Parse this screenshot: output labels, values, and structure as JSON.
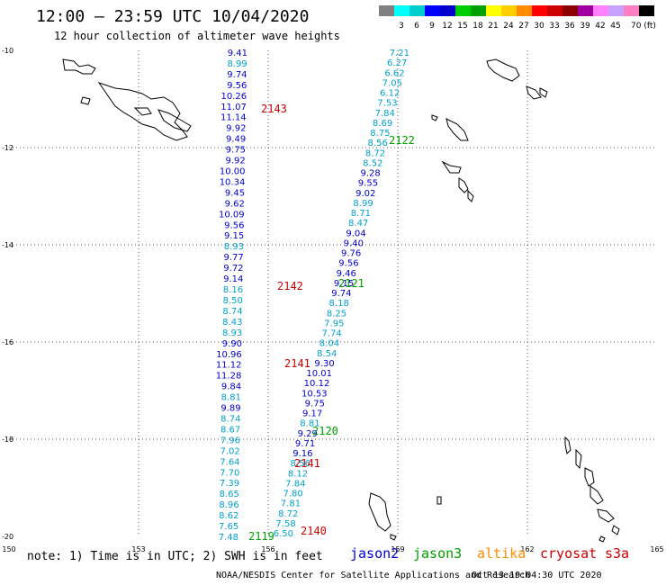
{
  "header": {
    "title": "12:00 – 23:59 UTC 10/04/2020",
    "subtitle": "12 hour collection of altimeter wave heights"
  },
  "colorbar": {
    "swatches": [
      "#808080",
      "#00ffff",
      "#00cdcd",
      "#0000ff",
      "#0000cd",
      "#00cd00",
      "#00a000",
      "#ffff00",
      "#ffcd00",
      "#ff8c00",
      "#ff0000",
      "#cd0000",
      "#8b0000",
      "#a000a0",
      "#ff80ff",
      "#c8a0ff",
      "#ff80c0",
      "#000000"
    ],
    "labels": [
      "3",
      "6",
      "9",
      "12",
      "15",
      "18",
      "21",
      "24",
      "27",
      "30",
      "33",
      "36",
      "39",
      "42",
      "45",
      "70 (ft)"
    ]
  },
  "axes": {
    "x_labels": [
      "150",
      "153",
      "156",
      "159",
      "162",
      "165"
    ],
    "y_labels": [
      "-10",
      "-12",
      "-14",
      "-16",
      "-18",
      "-20"
    ],
    "x_range": [
      150,
      165
    ],
    "y_range": [
      -20,
      -10
    ]
  },
  "tracks": [
    {
      "name": "track-left",
      "points": [
        {
          "v": "9.41",
          "c": "#0000cd"
        },
        {
          "v": "8.99",
          "c": "#00a0cd"
        },
        {
          "v": "9.74",
          "c": "#0000cd"
        },
        {
          "v": "9.56",
          "c": "#0000cd"
        },
        {
          "v": "10.26",
          "c": "#0000cd"
        },
        {
          "v": "11.07",
          "c": "#0000cd"
        },
        {
          "v": "11.14",
          "c": "#0000cd"
        },
        {
          "v": "9.92",
          "c": "#0000cd"
        },
        {
          "v": "9.49",
          "c": "#0000cd"
        },
        {
          "v": "9.75",
          "c": "#0000cd"
        },
        {
          "v": "9.92",
          "c": "#0000cd"
        },
        {
          "v": "10.00",
          "c": "#0000cd"
        },
        {
          "v": "10.34",
          "c": "#0000cd"
        },
        {
          "v": "9.45",
          "c": "#0000cd"
        },
        {
          "v": "9.62",
          "c": "#0000cd"
        },
        {
          "v": "10.09",
          "c": "#0000cd"
        },
        {
          "v": "9.56",
          "c": "#0000cd"
        },
        {
          "v": "9.15",
          "c": "#0000cd"
        },
        {
          "v": "8.93",
          "c": "#00a0cd"
        },
        {
          "v": "9.77",
          "c": "#0000cd"
        },
        {
          "v": "9.72",
          "c": "#0000cd"
        },
        {
          "v": "9.14",
          "c": "#0000cd"
        },
        {
          "v": "8.16",
          "c": "#00a0cd"
        },
        {
          "v": "8.50",
          "c": "#00a0cd"
        },
        {
          "v": "8.74",
          "c": "#00a0cd"
        },
        {
          "v": "8.43",
          "c": "#00a0cd"
        },
        {
          "v": "8.93",
          "c": "#00a0cd"
        },
        {
          "v": "9.90",
          "c": "#0000cd"
        },
        {
          "v": "10.96",
          "c": "#0000cd"
        },
        {
          "v": "11.12",
          "c": "#0000cd"
        },
        {
          "v": "11.28",
          "c": "#0000cd"
        },
        {
          "v": "9.84",
          "c": "#0000cd"
        },
        {
          "v": "8.81",
          "c": "#00a0cd"
        },
        {
          "v": "9.89",
          "c": "#0000cd"
        },
        {
          "v": "8.74",
          "c": "#00a0cd"
        },
        {
          "v": "8.67",
          "c": "#00a0cd"
        },
        {
          "v": "7.96",
          "c": "#00a0cd"
        },
        {
          "v": "7.02",
          "c": "#00a0cd"
        },
        {
          "v": "7.64",
          "c": "#00a0cd"
        },
        {
          "v": "7.70",
          "c": "#00a0cd"
        },
        {
          "v": "7.39",
          "c": "#00a0cd"
        },
        {
          "v": "8.65",
          "c": "#00a0cd"
        },
        {
          "v": "8.96",
          "c": "#00a0cd"
        },
        {
          "v": "8.62",
          "c": "#00a0cd"
        },
        {
          "v": "7.65",
          "c": "#00a0cd"
        },
        {
          "v": "7.48",
          "c": "#00a0cd"
        }
      ]
    },
    {
      "name": "track-right",
      "points": [
        {
          "v": "7.21",
          "c": "#00a0cd"
        },
        {
          "v": "6.27",
          "c": "#00a0cd"
        },
        {
          "v": "6.62",
          "c": "#00a0cd"
        },
        {
          "v": "7.05",
          "c": "#00a0cd"
        },
        {
          "v": "6.12",
          "c": "#00a0cd"
        },
        {
          "v": "7.53",
          "c": "#00a0cd"
        },
        {
          "v": "7.84",
          "c": "#00a0cd"
        },
        {
          "v": "8.69",
          "c": "#00a0cd"
        },
        {
          "v": "8.75",
          "c": "#00a0cd"
        },
        {
          "v": "8.56",
          "c": "#00a0cd"
        },
        {
          "v": "8.72",
          "c": "#00a0cd"
        },
        {
          "v": "8.52",
          "c": "#00a0cd"
        },
        {
          "v": "9.28",
          "c": "#0000cd"
        },
        {
          "v": "9.55",
          "c": "#0000cd"
        },
        {
          "v": "9.02",
          "c": "#0000cd"
        },
        {
          "v": "8.99",
          "c": "#00a0cd"
        },
        {
          "v": "8.71",
          "c": "#00a0cd"
        },
        {
          "v": "8.47",
          "c": "#00a0cd"
        },
        {
          "v": "9.04",
          "c": "#0000cd"
        },
        {
          "v": "9.40",
          "c": "#0000cd"
        },
        {
          "v": "9.76",
          "c": "#0000cd"
        },
        {
          "v": "9.56",
          "c": "#0000cd"
        },
        {
          "v": "9.46",
          "c": "#0000cd"
        },
        {
          "v": "9.15",
          "c": "#0000cd"
        },
        {
          "v": "9.74",
          "c": "#0000cd"
        },
        {
          "v": "8.18",
          "c": "#00a0cd"
        },
        {
          "v": "8.25",
          "c": "#00a0cd"
        },
        {
          "v": "7.95",
          "c": "#00a0cd"
        },
        {
          "v": "7.74",
          "c": "#00a0cd"
        },
        {
          "v": "8.04",
          "c": "#00a0cd"
        },
        {
          "v": "8.54",
          "c": "#00a0cd"
        },
        {
          "v": "9.30",
          "c": "#0000cd"
        },
        {
          "v": "10.01",
          "c": "#0000cd"
        },
        {
          "v": "10.12",
          "c": "#0000cd"
        },
        {
          "v": "10.53",
          "c": "#0000cd"
        },
        {
          "v": "9.75",
          "c": "#0000cd"
        },
        {
          "v": "9.17",
          "c": "#0000cd"
        },
        {
          "v": "8.81",
          "c": "#00a0cd"
        },
        {
          "v": "9.29",
          "c": "#0000cd"
        },
        {
          "v": "9.71",
          "c": "#0000cd"
        },
        {
          "v": "9.16",
          "c": "#0000cd"
        },
        {
          "v": "8.56",
          "c": "#00a0cd"
        },
        {
          "v": "8.12",
          "c": "#00a0cd"
        },
        {
          "v": "7.84",
          "c": "#00a0cd"
        },
        {
          "v": "7.80",
          "c": "#00a0cd"
        },
        {
          "v": "7.81",
          "c": "#00a0cd"
        },
        {
          "v": "8.72",
          "c": "#00a0cd"
        },
        {
          "v": "7.58",
          "c": "#00a0cd"
        },
        {
          "v": "6.50",
          "c": "#00a0cd"
        }
      ]
    }
  ],
  "time_labels": [
    {
      "t": "2143",
      "c": "#cd0000"
    },
    {
      "t": "2122",
      "c": "#00a000"
    },
    {
      "t": "2142",
      "c": "#cd0000"
    },
    {
      "t": "2121",
      "c": "#00a000"
    },
    {
      "t": "2141",
      "c": "#cd0000"
    },
    {
      "t": "2120",
      "c": "#00a000"
    },
    {
      "t": "2141",
      "c": "#cd0000"
    },
    {
      "t": "2119",
      "c": "#00a000"
    },
    {
      "t": "2140",
      "c": "#cd0000"
    }
  ],
  "note": "note: 1) Time is in UTC; 2) SWH is in feet",
  "legend": [
    {
      "label": "jason2",
      "color": "#0000cd"
    },
    {
      "label": "jason3",
      "color": "#00a000"
    },
    {
      "label": "altika",
      "color": "#ff8c00"
    },
    {
      "label": "cryosat",
      "color": "#cd0000"
    },
    {
      "label": "s3a",
      "color": "#cd0000"
    }
  ],
  "footer": {
    "left": "NOAA/NESDIS Center for Satellite Applications and Research",
    "right": "Oct 13 19:04:30 UTC 2020"
  }
}
